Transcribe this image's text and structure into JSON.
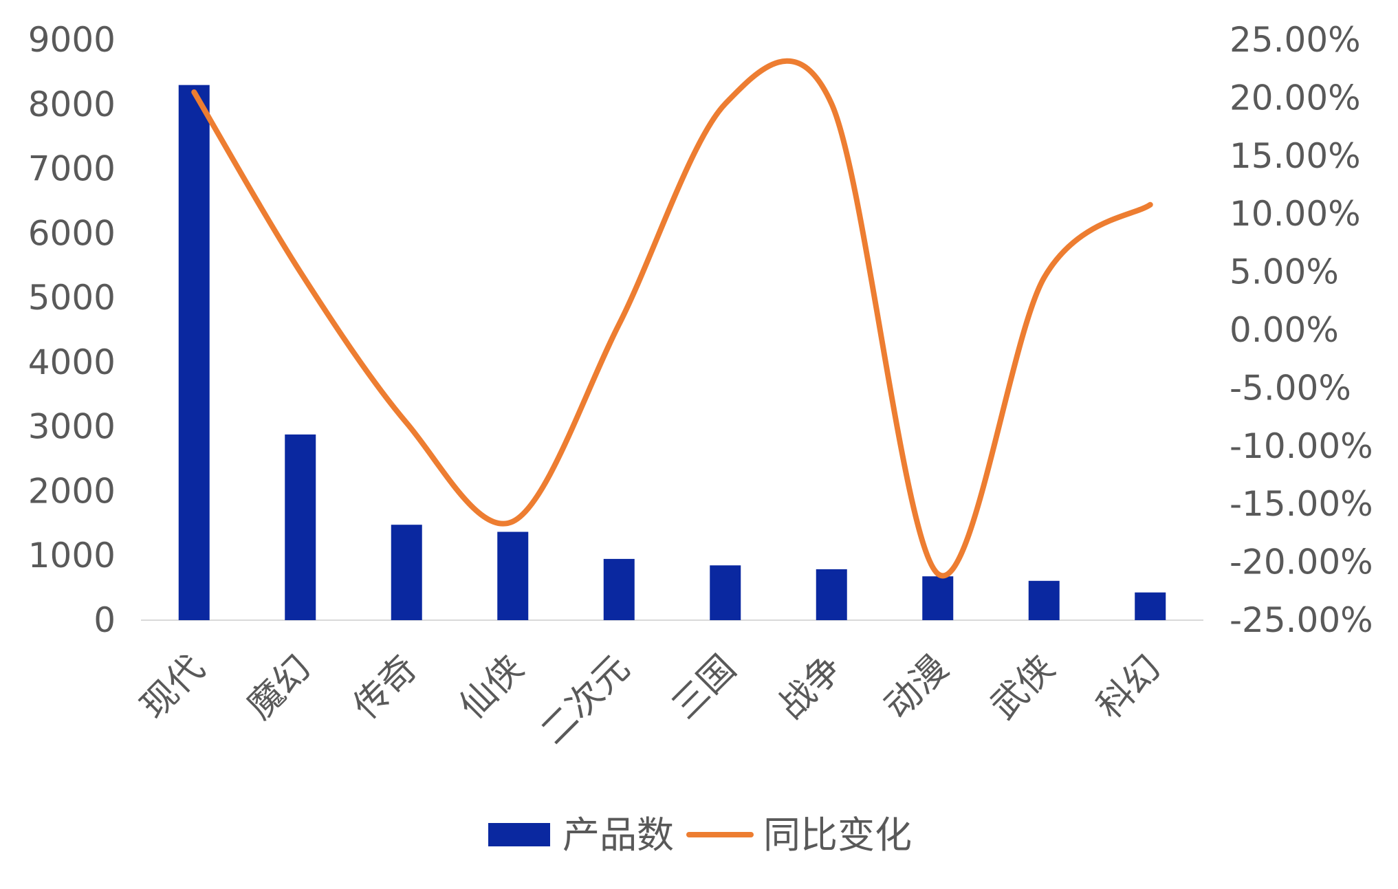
{
  "chart_data": {
    "type": "bar",
    "categories": [
      "现代",
      "魔幻",
      "传奇",
      "仙侠",
      "二次元",
      "三国",
      "战争",
      "动漫",
      "武侠",
      "科幻"
    ],
    "series": [
      {
        "name": "产品数",
        "type": "bar",
        "axis": "left",
        "color": "#0A28A0",
        "values": [
          8300,
          2880,
          1480,
          1370,
          950,
          850,
          790,
          680,
          610,
          430
        ]
      },
      {
        "name": "同比变化",
        "type": "line",
        "axis": "right",
        "color": "#ED7D31",
        "values": [
          20.5,
          5.0,
          -8.0,
          -16.5,
          0.5,
          19.5,
          19.5,
          -21.0,
          4.5,
          10.8
        ],
        "smooth": true
      }
    ],
    "y_left": {
      "min": 0,
      "max": 9000,
      "step": 1000,
      "tick_labels": [
        "0",
        "1000",
        "2000",
        "3000",
        "4000",
        "5000",
        "6000",
        "7000",
        "8000",
        "9000"
      ]
    },
    "y_right": {
      "min": -25,
      "max": 25,
      "step": 5,
      "tick_labels": [
        "-25.00%",
        "-20.00%",
        "-15.00%",
        "-10.00%",
        "-5.00%",
        "0.00%",
        "5.00%",
        "10.00%",
        "15.00%",
        "20.00%",
        "25.00%"
      ]
    },
    "grid": false,
    "legend_position": "bottom",
    "legend": [
      "产品数",
      "同比变化"
    ]
  }
}
